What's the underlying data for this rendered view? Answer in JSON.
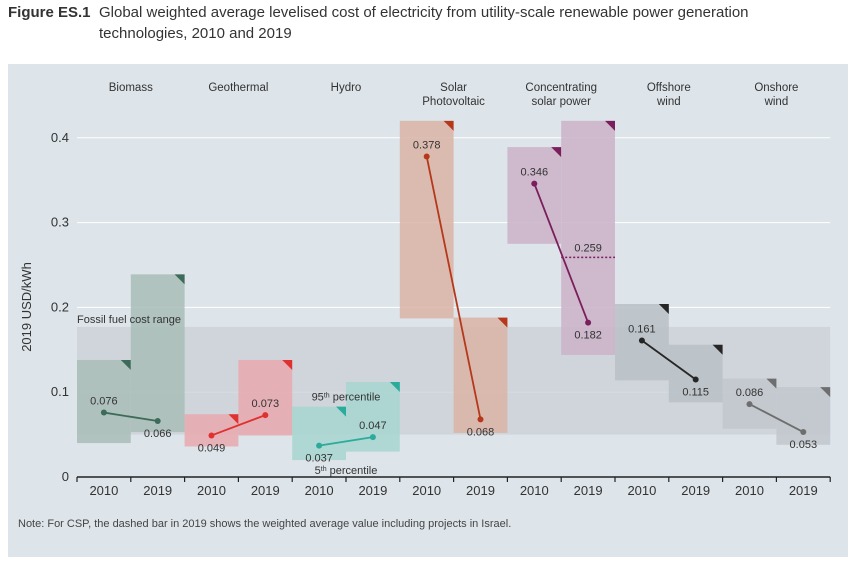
{
  "figure": {
    "label": "Figure ES.1",
    "title": "Global weighted average levelised cost of electricity from utility-scale renewable power generation technologies, 2010 and 2019"
  },
  "note": "Note: For CSP, the dashed bar in 2019 shows the weighted average value including projects in Israel.",
  "chart_data": {
    "type": "bar",
    "title": "",
    "xlabel": "",
    "ylabel": "2019 USD/kWh",
    "ylim": [
      0,
      0.42
    ],
    "yticks": [
      0,
      0.1,
      0.2,
      0.3,
      0.4
    ],
    "ytick_labels": [
      "0",
      "0.1",
      "0.2",
      "0.3",
      "0.4"
    ],
    "grid": true,
    "fossil_range": {
      "label": "Fossil fuel cost range",
      "low": 0.05,
      "high": 0.177
    },
    "annotations": {
      "p95": {
        "base": "95",
        "sup": "th",
        "rest": " percentile"
      },
      "p5": {
        "base": "5",
        "sup": "th",
        "rest": " percentile"
      }
    },
    "csp_israel": {
      "value": 0.259,
      "label": "0.259"
    },
    "technologies": [
      {
        "name": [
          "Biomass"
        ],
        "color": "#3d6b5a",
        "fill": "#a9bdb6",
        "years": [
          {
            "year": "2010",
            "value": 0.076,
            "label": "0.076",
            "low": 0.04,
            "high": 0.138
          },
          {
            "year": "2019",
            "value": 0.066,
            "label": "0.066",
            "low": 0.053,
            "high": 0.239
          }
        ]
      },
      {
        "name": [
          "Geothermal"
        ],
        "color": "#e03131",
        "fill": "#e8a8ae",
        "years": [
          {
            "year": "2010",
            "value": 0.049,
            "label": "0.049",
            "low": 0.036,
            "high": 0.074
          },
          {
            "year": "2019",
            "value": 0.073,
            "label": "0.073",
            "low": 0.049,
            "high": 0.138
          }
        ]
      },
      {
        "name": [
          "Hydro"
        ],
        "color": "#2aab9c",
        "fill": "#a7d5cf",
        "years": [
          {
            "year": "2010",
            "value": 0.037,
            "label": "0.037",
            "low": 0.02,
            "high": 0.083
          },
          {
            "year": "2019",
            "value": 0.047,
            "label": "0.047",
            "low": 0.03,
            "high": 0.112
          }
        ]
      },
      {
        "name": [
          "Solar",
          "Photovoltaic"
        ],
        "color": "#b5381b",
        "fill": "#dbb4a4",
        "years": [
          {
            "year": "2010",
            "value": 0.378,
            "label": "0.378",
            "low": 0.187,
            "high": 0.42
          },
          {
            "year": "2019",
            "value": 0.068,
            "label": "0.068",
            "low": 0.052,
            "high": 0.188
          }
        ]
      },
      {
        "name": [
          "Concentrating",
          "solar power"
        ],
        "color": "#7a1f5c",
        "fill": "#cbb1c8",
        "years": [
          {
            "year": "2010",
            "value": 0.346,
            "label": "0.346",
            "low": 0.275,
            "high": 0.389
          },
          {
            "year": "2019",
            "value": 0.182,
            "label": "0.182",
            "low": 0.144,
            "high": 0.42
          }
        ]
      },
      {
        "name": [
          "Offshore",
          "wind"
        ],
        "color": "#262626",
        "fill": "#b8bfc6",
        "years": [
          {
            "year": "2010",
            "value": 0.161,
            "label": "0.161",
            "low": 0.114,
            "high": 0.204
          },
          {
            "year": "2019",
            "value": 0.115,
            "label": "0.115",
            "low": 0.088,
            "high": 0.156
          }
        ]
      },
      {
        "name": [
          "Onshore",
          "wind"
        ],
        "color": "#6e6e6e",
        "fill": "#c1c7cc",
        "years": [
          {
            "year": "2010",
            "value": 0.086,
            "label": "0.086",
            "low": 0.057,
            "high": 0.116
          },
          {
            "year": "2019",
            "value": 0.053,
            "label": "0.053",
            "low": 0.038,
            "high": 0.106
          }
        ]
      }
    ]
  }
}
